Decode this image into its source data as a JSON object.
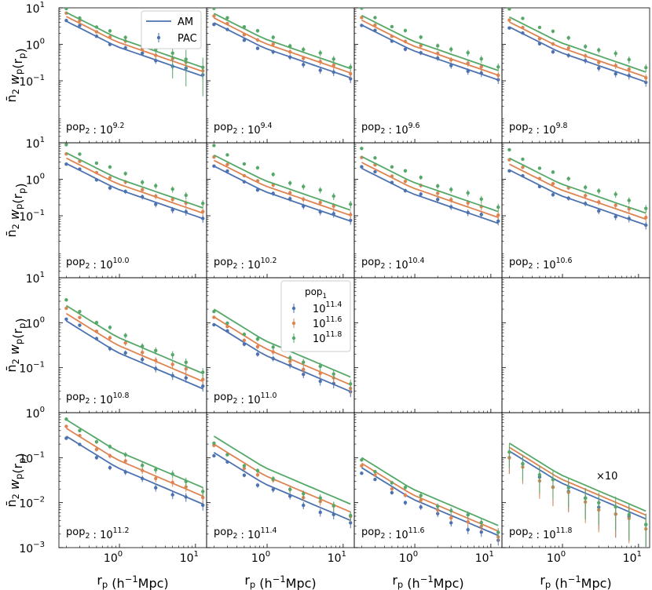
{
  "chart_data": {
    "type": "line",
    "description": "4x4 grid of log-log panels; lines = AM, points with error bars = PAC",
    "xlabel": "r_p (h^-1 Mpc)",
    "ylabel": "n2 w_p(r_p)",
    "xlim": [
      0.16,
      14
    ],
    "x_ticks": [
      {
        "value": 1,
        "label": "10",
        "exp": "0"
      },
      {
        "value": 10,
        "label": "10",
        "exp": "1"
      }
    ],
    "row_ylims": [
      [
        0.002,
        10
      ],
      [
        0.002,
        10
      ],
      [
        0.01,
        10
      ],
      [
        0.001,
        1
      ]
    ],
    "row_yticks": [
      [
        {
          "value": 10,
          "exp": "1"
        },
        {
          "value": 1,
          "exp": "0"
        },
        {
          "value": 0.1,
          "exp": "−1"
        }
      ],
      [
        {
          "value": 10,
          "exp": "1"
        },
        {
          "value": 1,
          "exp": "0"
        },
        {
          "value": 0.1,
          "exp": "−1"
        }
      ],
      [
        {
          "value": 10,
          "exp": "1"
        },
        {
          "value": 1,
          "exp": "0"
        },
        {
          "value": 0.1,
          "exp": "−1"
        }
      ],
      [
        {
          "value": 1,
          "exp": "0"
        },
        {
          "value": 0.1,
          "exp": "−1"
        },
        {
          "value": 0.01,
          "exp": "−2"
        },
        {
          "value": 0.001,
          "exp": "−3"
        }
      ]
    ],
    "legend_style": {
      "title": "",
      "line_label": "AM",
      "points_label": "PAC",
      "color": "#4c72b0"
    },
    "legend_pop": {
      "title": "pop",
      "title_sub": "1",
      "entries": [
        {
          "base": "10",
          "exp": "11.4"
        },
        {
          "base": "10",
          "exp": "11.6"
        },
        {
          "base": "10",
          "exp": "11.8"
        }
      ]
    },
    "series_colors": [
      "#4c72b0",
      "#dd8452",
      "#55a868"
    ],
    "x": [
      0.2,
      0.3,
      0.5,
      0.75,
      1.2,
      2.0,
      3.0,
      5.0,
      7.5,
      12.5
    ],
    "panels": [
      {
        "label_pre": "pop",
        "label_sub": "2",
        "exp": "9.2",
        "line_amp": [
          4.3,
          5.8,
          7.5
        ],
        "pts_amp": [
          4.5,
          6.5,
          8.6
        ],
        "lead_amp": 1.05,
        "tail": 0.06
      },
      {
        "label_pre": "pop",
        "label_sub": "2",
        "exp": "9.4",
        "line_amp": [
          3.9,
          5.3,
          7.0
        ],
        "pts_amp": [
          3.5,
          5.4,
          8.7
        ],
        "lead_amp": 1.05,
        "tail": 0.05
      },
      {
        "label_pre": "pop",
        "label_sub": "2",
        "exp": "9.6",
        "line_amp": [
          3.4,
          4.6,
          6.2
        ],
        "pts_amp": [
          3.3,
          4.9,
          8.8
        ],
        "lead_amp": 1.05,
        "tail": 0.05
      },
      {
        "label_pre": "pop",
        "label_sub": "2",
        "exp": "9.8",
        "line_amp": [
          3.0,
          4.1,
          5.6
        ],
        "pts_amp": [
          2.8,
          4.2,
          8.4
        ],
        "lead_amp": 1.05,
        "tail": 0.05
      },
      {
        "label_pre": "pop",
        "label_sub": "2",
        "exp": "10.0",
        "line_amp": [
          2.7,
          3.8,
          5.3
        ],
        "pts_amp": [
          2.6,
          4.5,
          8.0
        ],
        "lead_amp": 1.0,
        "tail": 0.04
      },
      {
        "label_pre": "pop",
        "label_sub": "2",
        "exp": "10.2",
        "line_amp": [
          2.3,
          3.3,
          4.6
        ],
        "pts_amp": [
          2.3,
          3.7,
          7.6
        ],
        "lead_amp": 1.0,
        "tail": 0.04
      },
      {
        "label_pre": "pop",
        "label_sub": "2",
        "exp": "10.4",
        "line_amp": [
          2.0,
          2.9,
          4.2
        ],
        "pts_amp": [
          2.2,
          3.6,
          6.3
        ],
        "lead_amp": 1.0,
        "tail": 0.04
      },
      {
        "label_pre": "pop",
        "label_sub": "2",
        "exp": "10.6",
        "line_amp": [
          1.8,
          2.6,
          3.8
        ],
        "pts_amp": [
          1.7,
          3.1,
          5.8
        ],
        "lead_amp": 1.0,
        "tail": 0.035
      },
      {
        "label_pre": "pop",
        "label_sub": "2",
        "exp": "10.8",
        "line_amp": [
          1.1,
          1.6,
          2.4
        ],
        "pts_amp": [
          1.2,
          1.9,
          2.9
        ],
        "lead_amp": 0.9,
        "tail": 0.025
      },
      {
        "label_pre": "pop",
        "label_sub": "2",
        "exp": "11.0",
        "line_amp": [
          0.95,
          1.35,
          2.0
        ],
        "pts_amp": [
          0.9,
          1.2,
          1.6
        ],
        "lead_amp": 0.9,
        "tail": 0.02
      },
      {
        "empty": true
      },
      {
        "empty": true
      },
      {
        "label_pre": "pop",
        "label_sub": "2",
        "exp": "11.2",
        "line_amp": [
          0.3,
          0.45,
          0.7
        ],
        "pts_amp": [
          0.27,
          0.45,
          0.65
        ],
        "lead_amp": 0.8,
        "tail": 0.006
      },
      {
        "label_pre": "pop",
        "label_sub": "2",
        "exp": "11.4",
        "line_amp": [
          0.13,
          0.2,
          0.3
        ],
        "pts_amp": [
          0.11,
          0.17,
          0.19
        ],
        "lead_amp": 0.8,
        "tail": 0.0025
      },
      {
        "label_pre": "pop",
        "label_sub": "2",
        "exp": "11.6",
        "line_amp": [
          0.06,
          0.075,
          0.1
        ],
        "pts_amp": [
          0.045,
          0.06,
          0.08
        ],
        "lead_amp": 0.8,
        "tail": 0.0006
      },
      {
        "label_pre": "pop",
        "label_sub": "2",
        "exp": "11.8",
        "line_amp": [
          0.14,
          0.17,
          0.21
        ],
        "pts_amp": [
          0.1,
          0.09,
          0.12
        ],
        "lead_amp": 0.8,
        "tail": 0.0045,
        "annotation": "×10",
        "annotation_color": "#d62728"
      }
    ]
  }
}
